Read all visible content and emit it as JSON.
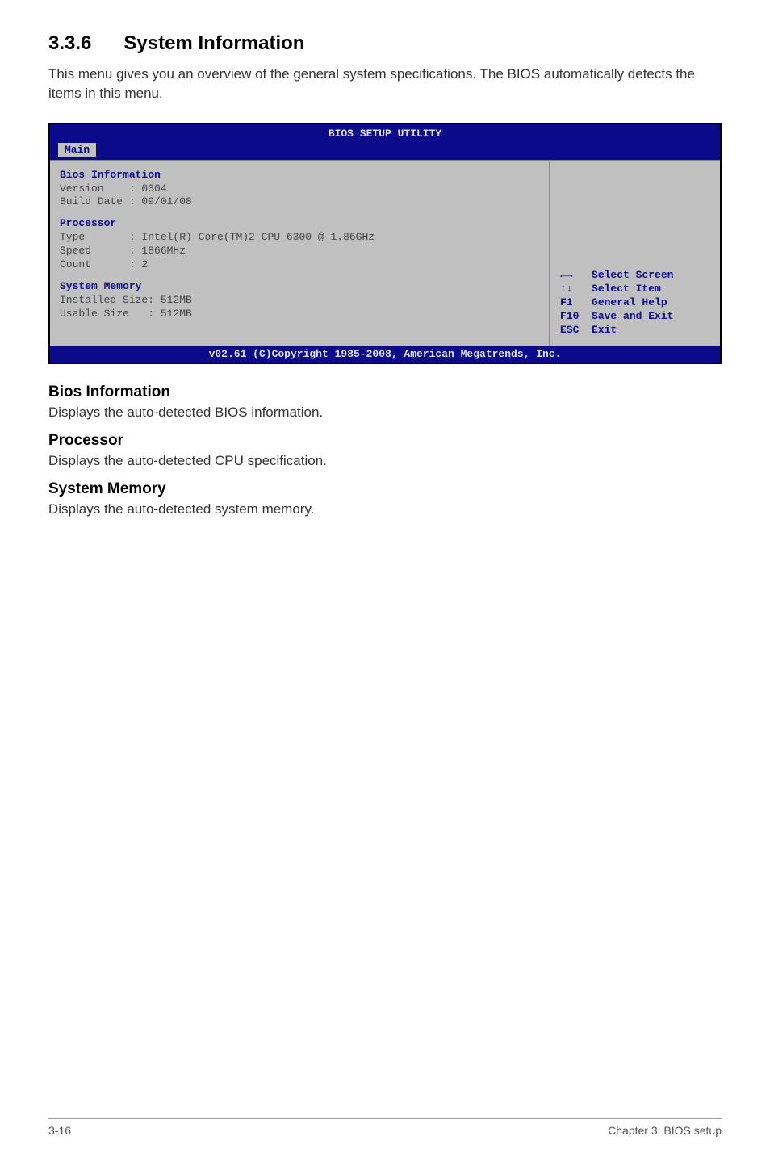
{
  "section": {
    "number": "3.3.6",
    "title": "System Information",
    "intro": "This menu gives you an overview of the general system specifications. The BIOS automatically detects the items in this menu."
  },
  "bios": {
    "title": "BIOS SETUP UTILITY",
    "tab": "Main",
    "blocks": {
      "bios_info": {
        "heading": "Bios Information",
        "version_label": "Version",
        "version_value": ": 0304",
        "build_label": "Build Date",
        "build_value": ": 09/01/08"
      },
      "processor": {
        "heading": "Processor",
        "type_label": "Type",
        "type_value": ": Intel(R) Core(TM)2 CPU 6300 @ 1.86GHz",
        "speed_label": "Speed",
        "speed_value": ": 1866MHz",
        "count_label": "Count",
        "count_value": ": 2"
      },
      "memory": {
        "heading": "System Memory",
        "installed_label": "Installed Size",
        "installed_value": ": 512MB",
        "usable_label": "Usable Size",
        "usable_value": ": 512MB"
      }
    },
    "help": {
      "l1_key": "←→",
      "l1_text": "Select Screen",
      "l2_key": "↑↓",
      "l2_text": "Select Item",
      "l3_key": "F1",
      "l3_text": "General Help",
      "l4_key": "F10",
      "l4_text": "Save and Exit",
      "l5_key": "ESC",
      "l5_text": "Exit"
    },
    "footer": "v02.61 (C)Copyright 1985-2008, American Megatrends, Inc."
  },
  "subsections": {
    "bios_info": {
      "heading": "Bios Information",
      "text": "Displays the auto-detected BIOS information."
    },
    "processor": {
      "heading": "Processor",
      "text": "Displays the auto-detected CPU specification."
    },
    "memory": {
      "heading": "System Memory",
      "text": "Displays the auto-detected system memory."
    }
  },
  "footer": {
    "left": "3-16",
    "right": "Chapter 3: BIOS setup"
  },
  "colors": {
    "bios_bg": "#0a0a8a",
    "bios_panel": "#c0c0c0",
    "bios_heading": "#0a0a8a",
    "text": "#333333"
  }
}
